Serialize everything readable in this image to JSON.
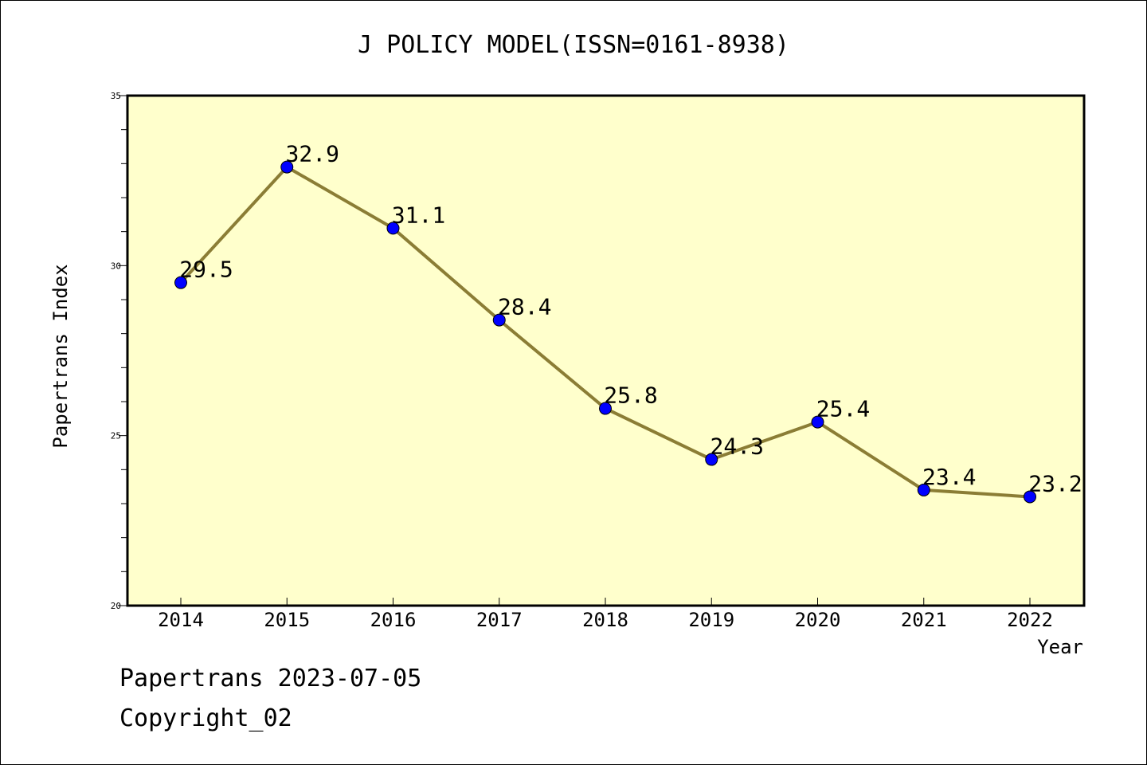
{
  "chart_data": {
    "type": "line",
    "title": "J POLICY MODEL(ISSN=0161-8938)",
    "xlabel": "Year",
    "ylabel": "Papertrans Index",
    "categories": [
      "2014",
      "2015",
      "2016",
      "2017",
      "2018",
      "2019",
      "2020",
      "2021",
      "2022"
    ],
    "series": [
      {
        "values": [
          29.5,
          32.9,
          31.1,
          28.4,
          25.8,
          24.3,
          25.4,
          23.4,
          23.2
        ],
        "data_labels": [
          "29.5",
          "32.9",
          "31.1",
          "28.4",
          "25.8",
          "24.3",
          "25.4",
          "23.4",
          "23.2"
        ]
      }
    ],
    "ylim": [
      20,
      35
    ],
    "yticks": [
      "20",
      "25",
      "30",
      "35"
    ],
    "grid": false,
    "colors": {
      "plot_background": "#ffffcc",
      "line": "#8b7d35",
      "marker": "#0000ff"
    }
  },
  "footer": {
    "line1": "Papertrans 2023-07-05",
    "line2": "Copyright_02"
  }
}
